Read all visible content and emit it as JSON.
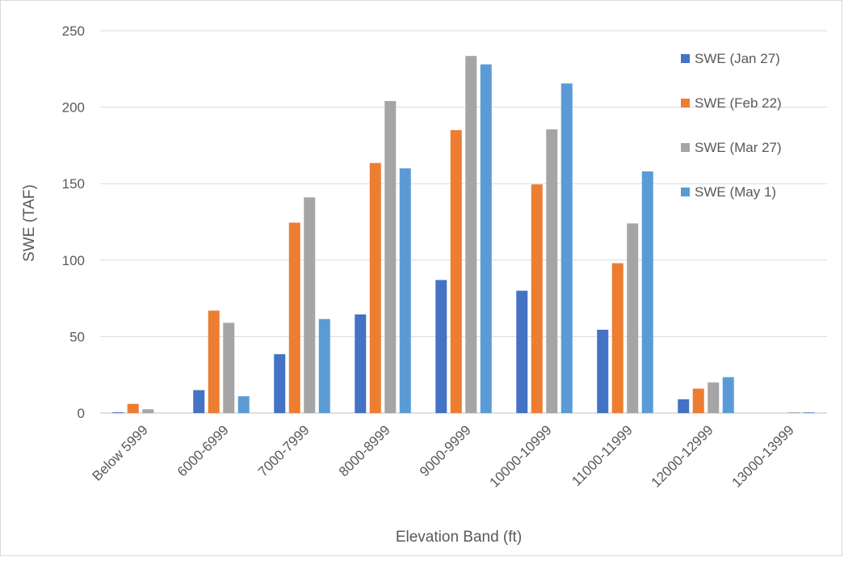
{
  "chart_data": {
    "type": "bar",
    "title": "",
    "xlabel": "Elevation Band (ft)",
    "ylabel": "SWE (TAF)",
    "ylim": [
      0,
      250
    ],
    "yticks": [
      0,
      50,
      100,
      150,
      200,
      250
    ],
    "grid": true,
    "legend_position": "top-right",
    "categories": [
      "Below 5999",
      "6000-6999",
      "7000-7999",
      "8000-8999",
      "9000-9999",
      "10000-10999",
      "11000-11999",
      "12000-12999",
      "13000-13999"
    ],
    "series": [
      {
        "name": "SWE (Jan 27)",
        "color": "#4472c4",
        "values": [
          0.5,
          15,
          38.5,
          64.5,
          87,
          80,
          54.5,
          9,
          0
        ]
      },
      {
        "name": "SWE (Feb 22)",
        "color": "#ed7d31",
        "values": [
          6,
          67,
          124.5,
          163.5,
          185,
          149.5,
          98,
          16,
          0
        ]
      },
      {
        "name": "SWE (Mar 27)",
        "color": "#a5a5a5",
        "values": [
          2.5,
          59,
          141,
          204,
          233.5,
          185.5,
          124,
          20,
          0.5
        ]
      },
      {
        "name": "SWE (May 1)",
        "color": "#5b9bd5",
        "values": [
          0,
          11,
          61.5,
          160,
          228,
          215.5,
          158,
          23.5,
          0.5
        ]
      }
    ]
  }
}
